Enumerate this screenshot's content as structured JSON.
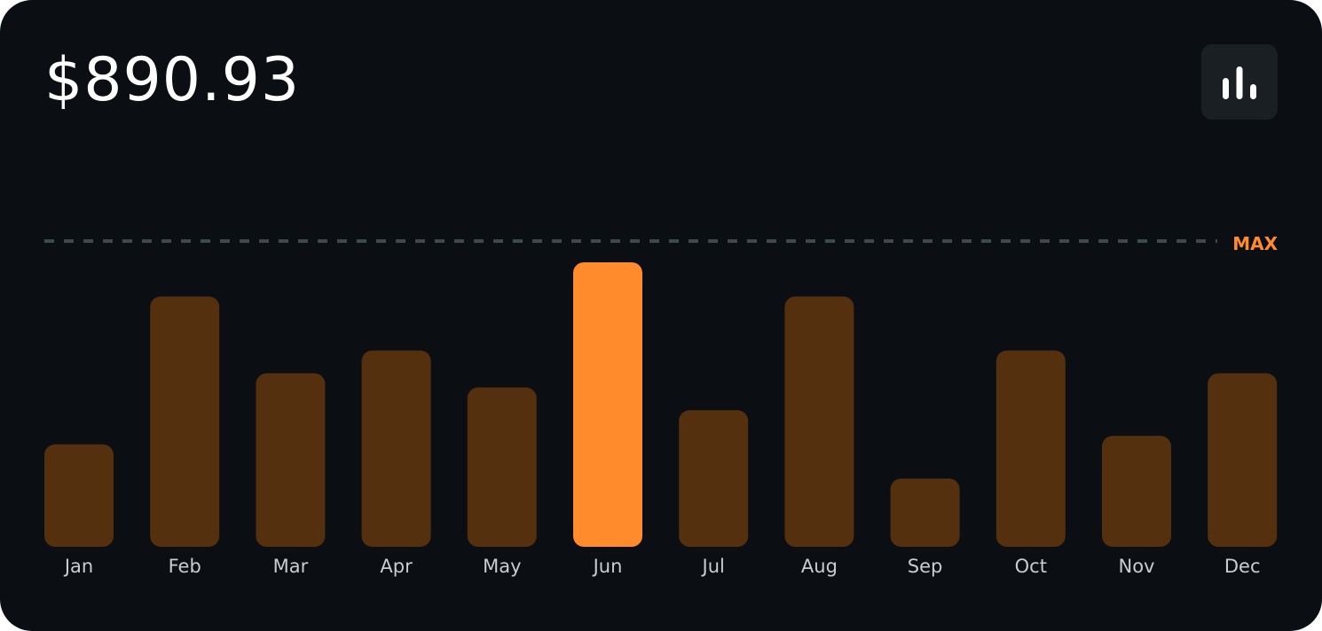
{
  "header": {
    "amount": "$890.93",
    "chart_toggle_icon": "bar-chart-icon"
  },
  "max_label": "MAX",
  "colors": {
    "background": "#0b0e12",
    "bar": "#55300e",
    "bar_highlight": "#ff8b2c",
    "max_line": "#3c4a4a",
    "max_label": "#ff8b2c",
    "axis_label": "#c9ccd1"
  },
  "chart_data": {
    "type": "bar",
    "title": "",
    "xlabel": "",
    "ylabel": "",
    "categories": [
      "Jan",
      "Feb",
      "Mar",
      "Apr",
      "May",
      "Jun",
      "Jul",
      "Aug",
      "Sep",
      "Oct",
      "Nov",
      "Dec"
    ],
    "values": [
      36,
      88,
      61,
      69,
      56,
      100,
      48,
      88,
      24,
      69,
      39,
      61
    ],
    "highlight_index": 5,
    "ylim": [
      0,
      100
    ],
    "reference_line": {
      "value": 100,
      "label": "MAX"
    },
    "grid": false,
    "legend": "none"
  }
}
